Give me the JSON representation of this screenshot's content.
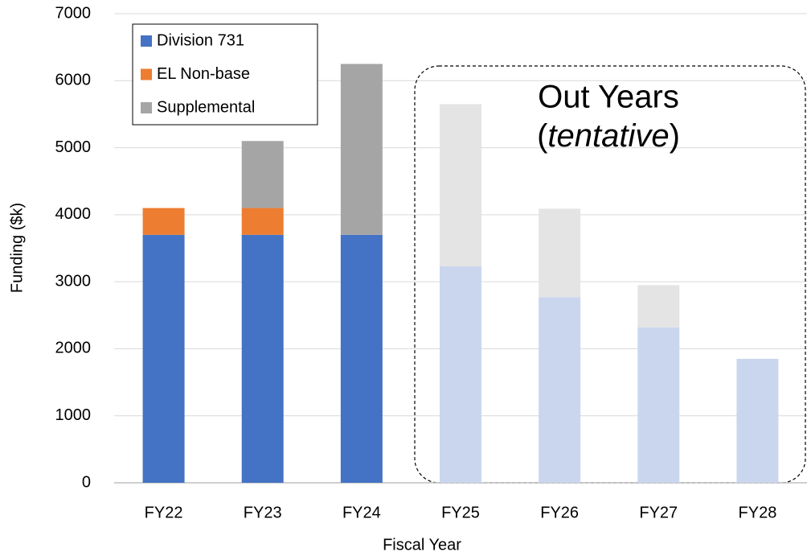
{
  "chart_data": {
    "type": "stacked_bar",
    "xlabel": "Fiscal Year",
    "ylabel": "Funding ($k)",
    "categories": [
      "FY22",
      "FY23",
      "FY24",
      "FY25",
      "FY26",
      "FY27",
      "FY28"
    ],
    "series": [
      {
        "name": "Division 731",
        "color": "#4472c4",
        "colors": [
          "#4472c4",
          "#4472c4",
          "#4472c4",
          "#cad6ee",
          "#cad6ee",
          "#cad6ee",
          "#cad6ee"
        ],
        "values": [
          3700,
          3700,
          3700,
          3230,
          2770,
          2320,
          1850
        ]
      },
      {
        "name": "EL Non-base",
        "color": "#ed7d31",
        "colors": [
          "#ed7d31",
          "#ed7d31",
          "#ed7d31",
          "#ed7d31",
          "#ed7d31",
          "#ed7d31",
          "#ed7d31"
        ],
        "values": [
          400,
          400,
          0,
          0,
          0,
          0,
          0
        ]
      },
      {
        "name": "Supplemental",
        "color": "#a5a5a5",
        "colors": [
          "#a5a5a5",
          "#a5a5a5",
          "#a5a5a5",
          "#e4e4e4",
          "#e4e4e4",
          "#e4e4e4",
          "#e4e4e4"
        ],
        "values": [
          0,
          1000,
          2550,
          2420,
          1320,
          630,
          0
        ]
      }
    ],
    "annotation": {
      "title": "Out Years",
      "subtitle": [
        "(",
        "tentative",
        ")"
      ]
    },
    "ylim": [
      0,
      7000
    ],
    "yticks": [
      0,
      1000,
      2000,
      3000,
      4000,
      5000,
      6000,
      7000
    ],
    "grid": true,
    "legend": "upper left"
  }
}
